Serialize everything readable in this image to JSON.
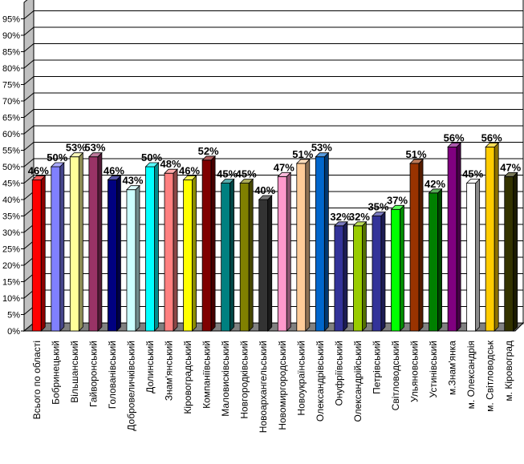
{
  "chart_data": {
    "type": "bar",
    "title": "",
    "xlabel": "",
    "ylabel": "",
    "ylim": [
      0,
      100
    ],
    "yticks": [
      "0%",
      "5%",
      "10%",
      "15%",
      "20%",
      "25%",
      "30%",
      "35%",
      "40%",
      "45%",
      "50%",
      "55%",
      "60%",
      "65%",
      "70%",
      "75%",
      "80%",
      "85%",
      "90%",
      "95%"
    ],
    "grid": true,
    "legend": "none",
    "categories": [
      "Всього по області",
      "Бобринецький",
      "Вільшанський",
      "Гайворонський",
      "Голованівський",
      "Добровеличківський",
      "Долинський",
      "Знам'янський",
      "Кіровоградський",
      "Компаніївський",
      "Маловисківський",
      "Новгородківський",
      "Новоархангельський",
      "Новомиргородський",
      "Новоукраїнський",
      "Олександрівський",
      "Онуфріївський",
      "Олександрійський",
      "Петрівський",
      "Світловодський",
      "Ульяновський",
      "Устинівський",
      "м.Знам'янка",
      "м. Олександрія",
      "м. Світловодськ",
      "м. Кіровоград"
    ],
    "values": [
      46,
      50,
      53,
      53,
      46,
      43,
      50,
      48,
      46,
      52,
      45,
      45,
      40,
      47,
      51,
      53,
      32,
      32,
      35,
      37,
      51,
      42,
      56,
      45,
      56,
      47
    ],
    "data_labels": [
      "46%",
      "50%",
      "53%",
      "53%",
      "46%",
      "43%",
      "50%",
      "48%",
      "46%",
      "52%",
      "45%",
      "45%",
      "40%",
      "47%",
      "51%",
      "53%",
      "32%",
      "32%",
      "35%",
      "37%",
      "51%",
      "42%",
      "56%",
      "45%",
      "56%",
      "47%"
    ],
    "colors": [
      "#ff0000",
      "#8080ff",
      "#ffff99",
      "#993366",
      "#000080",
      "#ccffff",
      "#00ffff",
      "#ff8080",
      "#ffff00",
      "#800000",
      "#008080",
      "#808000",
      "#333333",
      "#ff99cc",
      "#ffcc99",
      "#0066cc",
      "#333399",
      "#99cc00",
      "#333399",
      "#00ff00",
      "#993300",
      "#008000",
      "#800080",
      "#ffffff",
      "#ffcc00",
      "#333300"
    ]
  }
}
